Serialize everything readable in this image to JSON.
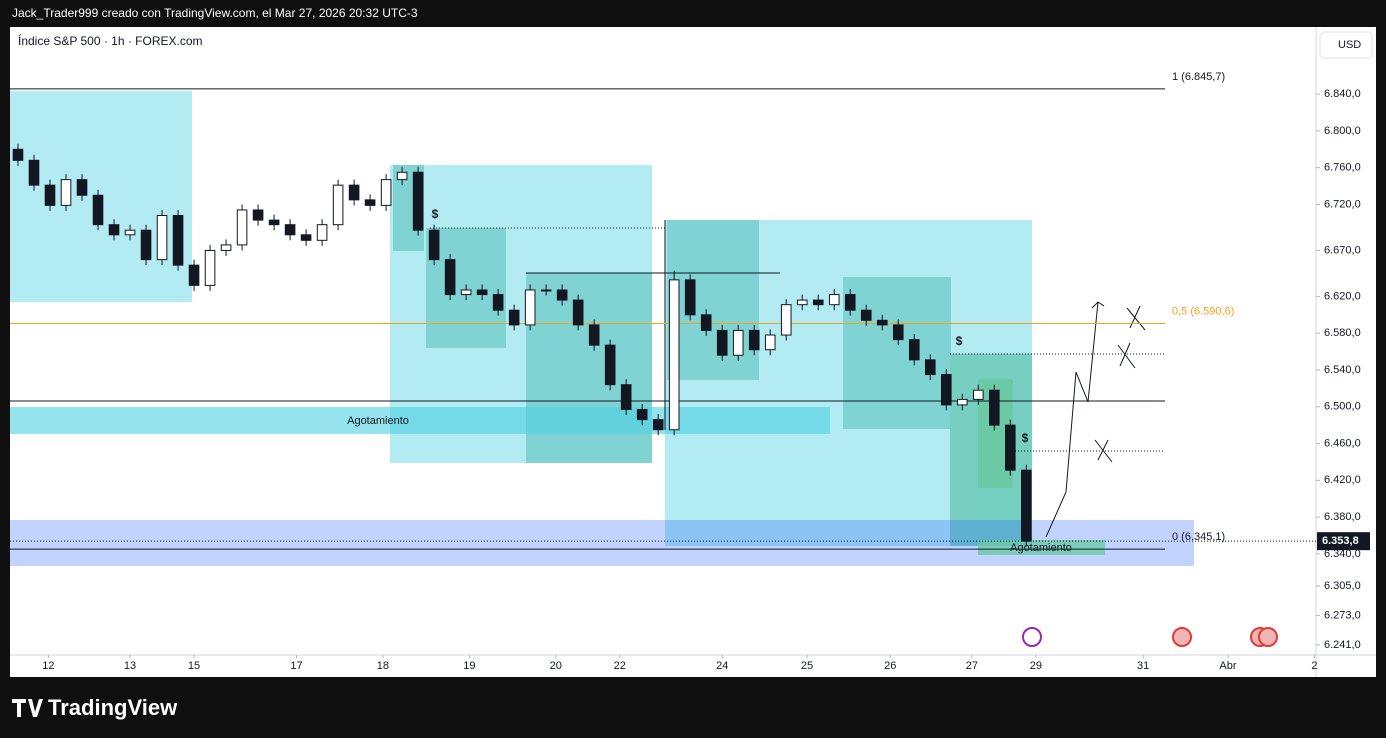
{
  "header": "Jack_Trader999 creado con TradingView.com, el Mar 27, 2026 20:32 UTC-3",
  "footer": "TradingView",
  "chart_data": {
    "type": "candlestick",
    "title": "Índice S&P 500 · 1h · FOREX.com",
    "currency": "USD",
    "open": [
      6780,
      6768,
      6741,
      6719,
      6747,
      6730,
      6698,
      6687,
      6692,
      6660,
      6708,
      6654,
      6632,
      6670,
      6676,
      6714,
      6703,
      6698,
      6687,
      6681,
      6698,
      6741,
      6725,
      6719,
      6747,
      6755,
      6692,
      6660,
      6622,
      6627,
      6622,
      6605,
      6589,
      6627,
      6627,
      6616,
      6589,
      6567,
      6524,
      6497,
      6486,
      6475,
      6638,
      6600,
      6583,
      6556,
      6583,
      6562,
      6578,
      6611,
      6616,
      6611,
      6622,
      6605,
      6594,
      6589,
      6573,
      6551,
      6535,
      6502,
      6508,
      6518,
      6480,
      6431
    ],
    "high": [
      6786,
      6774,
      6747,
      6753,
      6753,
      6736,
      6704,
      6698,
      6698,
      6714,
      6714,
      6660,
      6676,
      6682,
      6720,
      6720,
      6709,
      6704,
      6693,
      6704,
      6747,
      6747,
      6731,
      6753,
      6761,
      6761,
      6698,
      6666,
      6633,
      6633,
      6628,
      6611,
      6633,
      6633,
      6633,
      6622,
      6595,
      6573,
      6530,
      6503,
      6492,
      6648,
      6644,
      6606,
      6589,
      6589,
      6589,
      6584,
      6617,
      6622,
      6622,
      6628,
      6628,
      6611,
      6600,
      6595,
      6579,
      6557,
      6541,
      6514,
      6524,
      6524,
      6486,
      6437
    ],
    "low": [
      6762,
      6735,
      6713,
      6713,
      6724,
      6692,
      6681,
      6681,
      6654,
      6654,
      6648,
      6626,
      6626,
      6664,
      6670,
      6697,
      6692,
      6681,
      6675,
      6675,
      6692,
      6719,
      6713,
      6713,
      6741,
      6686,
      6654,
      6616,
      6616,
      6616,
      6599,
      6583,
      6583,
      6621,
      6610,
      6583,
      6561,
      6518,
      6491,
      6480,
      6469,
      6469,
      6594,
      6577,
      6550,
      6550,
      6556,
      6556,
      6572,
      6605,
      6605,
      6605,
      6599,
      6588,
      6583,
      6567,
      6545,
      6529,
      6496,
      6496,
      6502,
      6474,
      6425,
      6348
    ],
    "close": [
      6768,
      6741,
      6719,
      6747,
      6730,
      6698,
      6687,
      6692,
      6660,
      6708,
      6654,
      6632,
      6670,
      6676,
      6714,
      6703,
      6698,
      6687,
      6681,
      6698,
      6741,
      6725,
      6719,
      6747,
      6755,
      6692,
      6660,
      6622,
      6627,
      6622,
      6605,
      6589,
      6627,
      6627,
      6616,
      6589,
      6567,
      6524,
      6497,
      6486,
      6475,
      6638,
      6600,
      6583,
      6556,
      6583,
      6562,
      6578,
      6611,
      6616,
      6611,
      6622,
      6605,
      6594,
      6589,
      6573,
      6551,
      6535,
      6502,
      6508,
      6518,
      6480,
      6431,
      6353.8
    ],
    "up_color": "#ffffff",
    "down_color": "#131722",
    "wick_color": "#131722",
    "xlim": [
      -0.5,
      81.1
    ],
    "xticks": [
      {
        "value": 1.9,
        "label": "12"
      },
      {
        "value": 7,
        "label": "13"
      },
      {
        "value": 11,
        "label": "15"
      },
      {
        "value": 17.4,
        "label": "17"
      },
      {
        "value": 22.8,
        "label": "18"
      },
      {
        "value": 28.2,
        "label": "19"
      },
      {
        "value": 33.6,
        "label": "20"
      },
      {
        "value": 37.6,
        "label": "22"
      },
      {
        "value": 44,
        "label": "24"
      },
      {
        "value": 49.3,
        "label": "25"
      },
      {
        "value": 54.5,
        "label": "26"
      },
      {
        "value": 59.6,
        "label": "27"
      },
      {
        "value": 63.6,
        "label": "29"
      },
      {
        "value": 70.3,
        "label": "31"
      },
      {
        "value": 75.6,
        "label": "Abr"
      },
      {
        "value": 81,
        "label": "2"
      }
    ],
    "ylim": [
      6230,
      6913
    ],
    "yticks": [
      {
        "value": 6840,
        "label": "6.840,0"
      },
      {
        "value": 6800,
        "label": "6.800,0"
      },
      {
        "value": 6760,
        "label": "6.760,0"
      },
      {
        "value": 6720,
        "label": "6.720,0"
      },
      {
        "value": 6670,
        "label": "6.670,0"
      },
      {
        "value": 6620,
        "label": "6.620,0"
      },
      {
        "value": 6580,
        "label": "6.580,0"
      },
      {
        "value": 6540,
        "label": "6.540,0"
      },
      {
        "value": 6500,
        "label": "6.500,0"
      },
      {
        "value": 6460,
        "label": "6.460,0"
      },
      {
        "value": 6420,
        "label": "6.420,0"
      },
      {
        "value": 6380,
        "label": "6.380,0"
      },
      {
        "value": 6340,
        "label": "6.340,0"
      },
      {
        "value": 6305,
        "label": "6.305,0"
      },
      {
        "value": 6273,
        "label": "6.273,0"
      },
      {
        "value": 6241,
        "label": "6.241,0"
      }
    ],
    "last_price": {
      "value": 6353.8,
      "label": "6.353,8"
    },
    "levels": [
      {
        "value": 6845.7,
        "label": "1 (6.845,7)",
        "color": "#131722"
      },
      {
        "value": 6590.6,
        "label": "0,5 (6.590,6)",
        "color": "#f7a21b"
      },
      {
        "value": 6345.1,
        "label": "0 (6.345,1)",
        "color": "#131722"
      }
    ],
    "annotations": [
      "Agotamiento",
      "Agotamiento",
      "$",
      "$",
      "$"
    ]
  }
}
